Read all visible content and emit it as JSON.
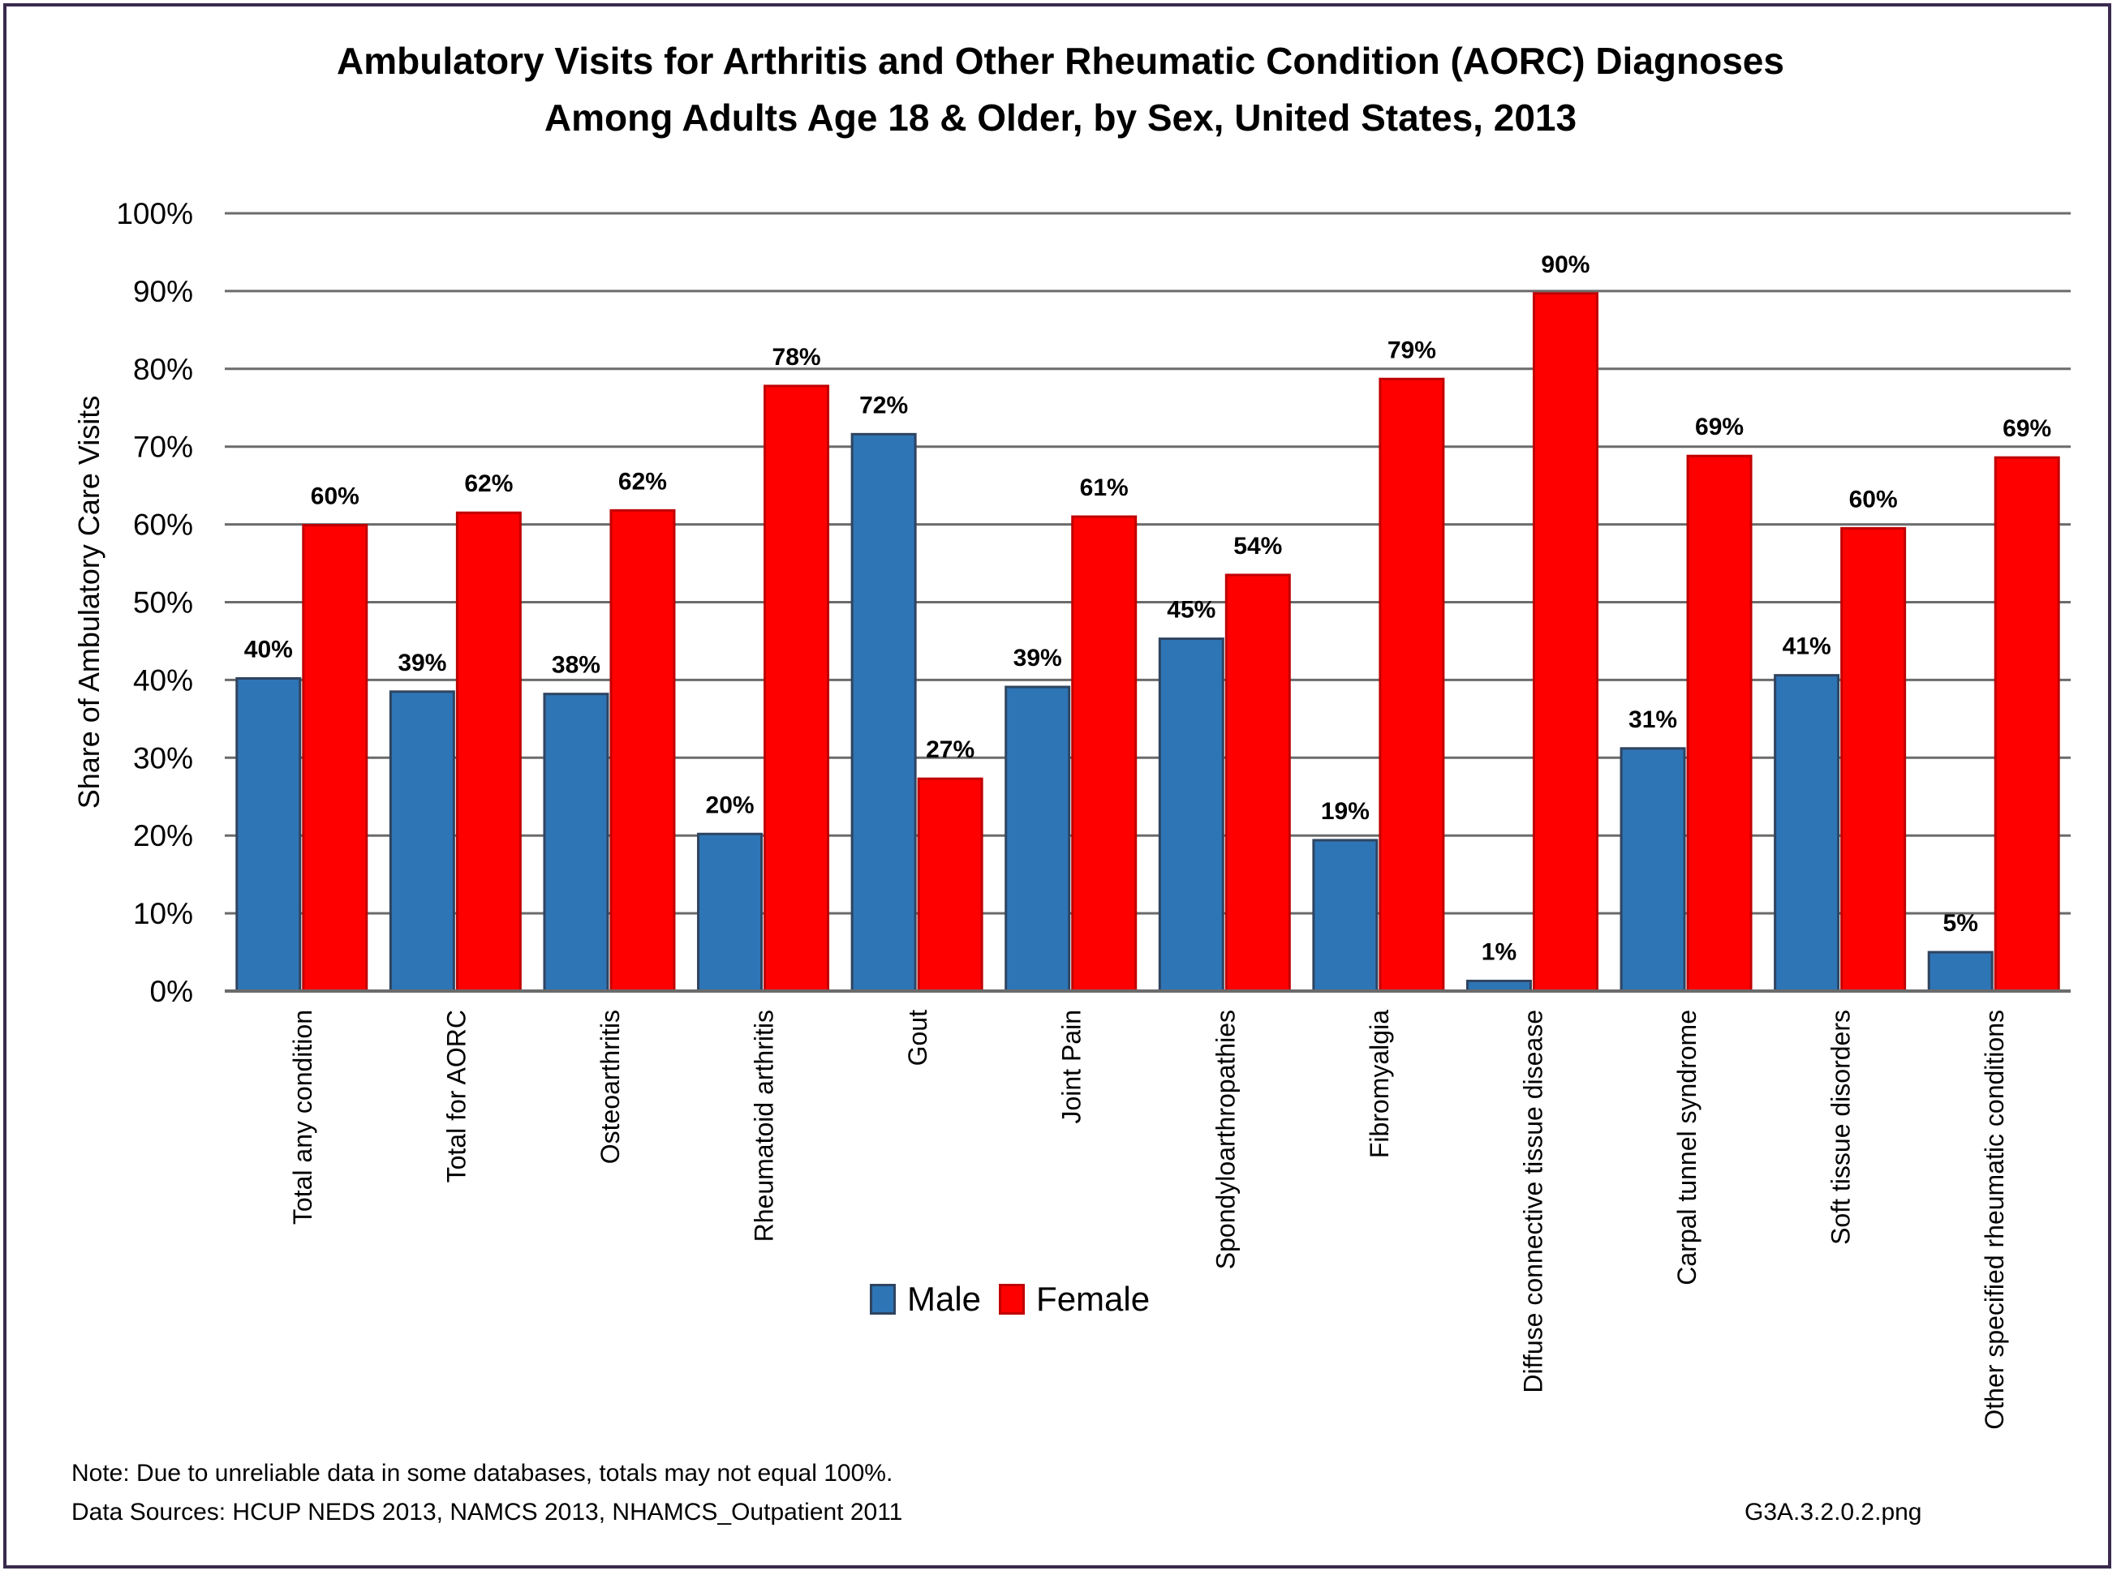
{
  "chart_data": {
    "type": "bar",
    "title": "Ambulatory Visits for Arthritis and Other Rheumatic Condition (AORC) Diagnoses",
    "subtitle": "Among Adults Age 18 & Older, by Sex, United States, 2013",
    "xlabel": "",
    "ylabel": "Share of Ambulatory Care Visits",
    "ylim": [
      0,
      100
    ],
    "yticks": [
      "0%",
      "10%",
      "20%",
      "30%",
      "40%",
      "50%",
      "60%",
      "70%",
      "80%",
      "90%",
      "100%"
    ],
    "grid": true,
    "legend_position": "bottom-center",
    "categories": [
      "Total any condition",
      "Total for AORC",
      "Osteoarthritis",
      "Rheumatoid arthritis",
      "Gout",
      "Joint Pain",
      "Spondyloarthropathies",
      "Fibromyalgia",
      "Diffuse connective tissue disease",
      "Carpal tunnel syndrome",
      "Soft tissue disorders",
      "Other specified rheumatic conditions"
    ],
    "series": [
      {
        "name": "Male",
        "color": "#2e75b6",
        "values": [
          40.2,
          38.5,
          38.2,
          20.2,
          71.6,
          39.1,
          45.3,
          19.4,
          1.3,
          31.2,
          40.6,
          5.0
        ],
        "labels": [
          "40%",
          "39%",
          "38%",
          "20%",
          "72%",
          "39%",
          "45%",
          "19%",
          "1%",
          "31%",
          "41%",
          "5%"
        ]
      },
      {
        "name": "Female",
        "color": "#ff0000",
        "values": [
          59.9,
          61.5,
          61.8,
          77.8,
          27.3,
          61.0,
          53.5,
          78.7,
          89.7,
          68.8,
          59.5,
          68.6
        ],
        "labels": [
          "60%",
          "62%",
          "62%",
          "78%",
          "27%",
          "61%",
          "54%",
          "79%",
          "90%",
          "69%",
          "60%",
          "69%"
        ]
      }
    ]
  },
  "footer": {
    "note": "Note: Due to unreliable data in some databases, totals may not equal 100%.",
    "sources": "Data Sources: HCUP NEDS 2013, NAMCS 2013, NHAMCS_Outpatient 2011",
    "filename": "G3A.3.2.0.2.png"
  }
}
